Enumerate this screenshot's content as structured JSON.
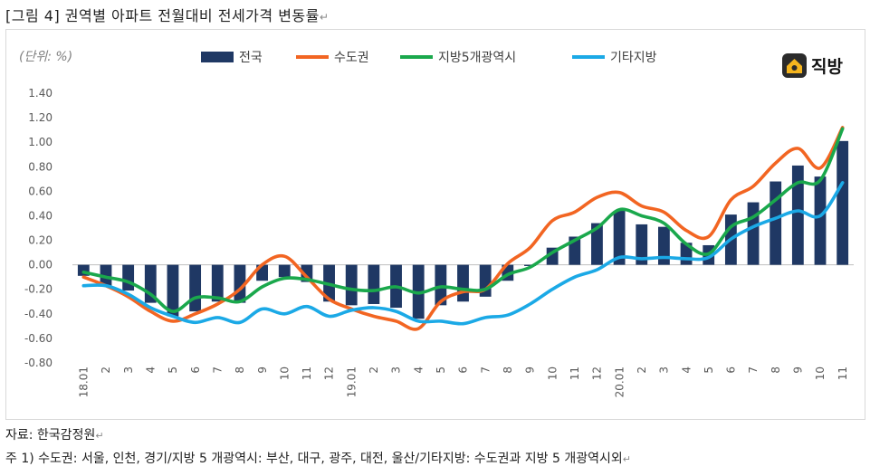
{
  "figure": {
    "title": "[그림 4]  권역별  아파트  전월대비  전세가격  변동률",
    "return_mark": "↵"
  },
  "logo": {
    "text": "직방"
  },
  "footer": {
    "source": "자료:  한국감정원",
    "note": "주 1)  수도권:  서울,  인천,  경기/지방 5 개광역시:  부산,  대구,  광주,  대전,  울산/기타지방:  수도권과  지방 5 개광역시외"
  },
  "colors": {
    "nation": "#1f3864",
    "capital": "#f26522",
    "metro5": "#1aa84c",
    "other": "#1ba9e6"
  },
  "chart_data": {
    "type": "bar",
    "unit_label": "(단위: %)",
    "categories": [
      "18.01",
      "2",
      "3",
      "4",
      "5",
      "6",
      "7",
      "8",
      "9",
      "10",
      "11",
      "12",
      "19.01",
      "2",
      "3",
      "4",
      "5",
      "6",
      "7",
      "8",
      "9",
      "10",
      "11",
      "12",
      "20.01",
      "2",
      "3",
      "4",
      "5",
      "6",
      "7",
      "8",
      "9",
      "10",
      "11"
    ],
    "ylim": [
      -0.8,
      1.4
    ],
    "yticks": [
      "1.40",
      "1.20",
      "1.00",
      "0.80",
      "0.60",
      "0.40",
      "0.20",
      "0.00",
      "-0.20",
      "-0.40",
      "-0.60",
      "-0.80"
    ],
    "legend_position": "top",
    "series": [
      {
        "name": "전국",
        "type": "bar",
        "values": [
          -0.09,
          -0.17,
          -0.21,
          -0.31,
          -0.42,
          -0.38,
          -0.3,
          -0.31,
          -0.13,
          -0.1,
          -0.14,
          -0.3,
          -0.33,
          -0.32,
          -0.35,
          -0.44,
          -0.33,
          -0.3,
          -0.26,
          -0.13,
          -0.01,
          0.14,
          0.23,
          0.34,
          0.44,
          0.33,
          0.31,
          0.18,
          0.16,
          0.41,
          0.51,
          0.68,
          0.81,
          0.72,
          1.01
        ]
      },
      {
        "name": "수도권",
        "type": "line",
        "values": [
          -0.1,
          -0.17,
          -0.26,
          -0.38,
          -0.46,
          -0.4,
          -0.32,
          -0.2,
          0.0,
          0.07,
          -0.1,
          -0.28,
          -0.36,
          -0.42,
          -0.46,
          -0.52,
          -0.3,
          -0.22,
          -0.2,
          0.01,
          0.14,
          0.36,
          0.43,
          0.55,
          0.59,
          0.48,
          0.43,
          0.28,
          0.23,
          0.53,
          0.64,
          0.83,
          0.95,
          0.79,
          1.12
        ]
      },
      {
        "name": "지방5개광역시",
        "type": "line",
        "values": [
          -0.06,
          -0.1,
          -0.14,
          -0.24,
          -0.38,
          -0.27,
          -0.27,
          -0.3,
          -0.18,
          -0.11,
          -0.12,
          -0.16,
          -0.2,
          -0.21,
          -0.18,
          -0.23,
          -0.18,
          -0.2,
          -0.2,
          -0.08,
          -0.02,
          0.1,
          0.2,
          0.3,
          0.45,
          0.4,
          0.34,
          0.17,
          0.09,
          0.31,
          0.39,
          0.53,
          0.67,
          0.69,
          1.11
        ]
      },
      {
        "name": "기타지방",
        "type": "line",
        "values": [
          -0.17,
          -0.17,
          -0.24,
          -0.35,
          -0.42,
          -0.47,
          -0.43,
          -0.47,
          -0.36,
          -0.4,
          -0.34,
          -0.42,
          -0.37,
          -0.35,
          -0.38,
          -0.46,
          -0.46,
          -0.48,
          -0.43,
          -0.41,
          -0.32,
          -0.2,
          -0.1,
          -0.04,
          0.06,
          0.05,
          0.06,
          0.05,
          0.06,
          0.21,
          0.31,
          0.38,
          0.44,
          0.4,
          0.67
        ]
      }
    ]
  }
}
